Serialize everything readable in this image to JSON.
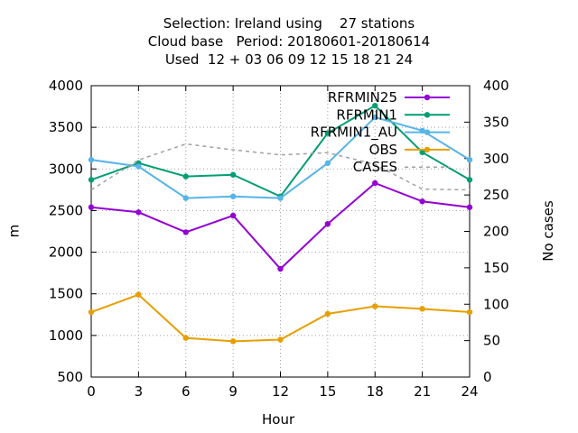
{
  "chart_data": {
    "type": "line",
    "title_lines": [
      "Selection: Ireland using    27 stations",
      "Cloud base   Period: 20180601-20180614",
      "Used  12 + 03 06 09 12 15 18 21 24"
    ],
    "xlabel": "Hour",
    "ylabel": "m",
    "y2label": "No cases",
    "x": [
      0,
      3,
      6,
      9,
      12,
      15,
      18,
      21,
      24
    ],
    "xlim": [
      0,
      24
    ],
    "ylim": [
      500,
      4000
    ],
    "y2lim": [
      0,
      400
    ],
    "xticks": [
      "0",
      "3",
      "6",
      "9",
      "12",
      "15",
      "18",
      "21",
      "24"
    ],
    "yticks": [
      "500",
      "1000",
      "1500",
      "2000",
      "2500",
      "3000",
      "3500",
      "4000"
    ],
    "y2ticks": [
      "0",
      "50",
      "100",
      "150",
      "200",
      "250",
      "300",
      "350",
      "400"
    ],
    "grid": true,
    "legend_position": "top-right",
    "series": [
      {
        "name": "RFRMIN25",
        "axis": "y",
        "color": "#9400d3",
        "dashed": false,
        "values": [
          2540,
          2480,
          2240,
          2440,
          1800,
          2340,
          2830,
          2610,
          2540
        ]
      },
      {
        "name": "RFRMIN1",
        "axis": "y",
        "color": "#009e73",
        "dashed": false,
        "values": [
          2870,
          3070,
          2910,
          2930,
          2670,
          3430,
          3760,
          3200,
          2870
        ]
      },
      {
        "name": "RFRMIN1_AU",
        "axis": "y",
        "color": "#56b4e9",
        "dashed": false,
        "values": [
          3110,
          3030,
          2650,
          2670,
          2650,
          3070,
          3620,
          3460,
          3110
        ]
      },
      {
        "name": "OBS",
        "axis": "y",
        "color": "#e69f00",
        "dashed": false,
        "values": [
          1280,
          1490,
          970,
          930,
          950,
          1260,
          1350,
          1320,
          1280
        ]
      },
      {
        "name": "CASES",
        "axis": "y2",
        "color": "#a0a0a0",
        "dashed": true,
        "values": [
          257,
          298,
          320,
          312,
          305,
          308,
          292,
          258,
          257
        ]
      }
    ]
  }
}
